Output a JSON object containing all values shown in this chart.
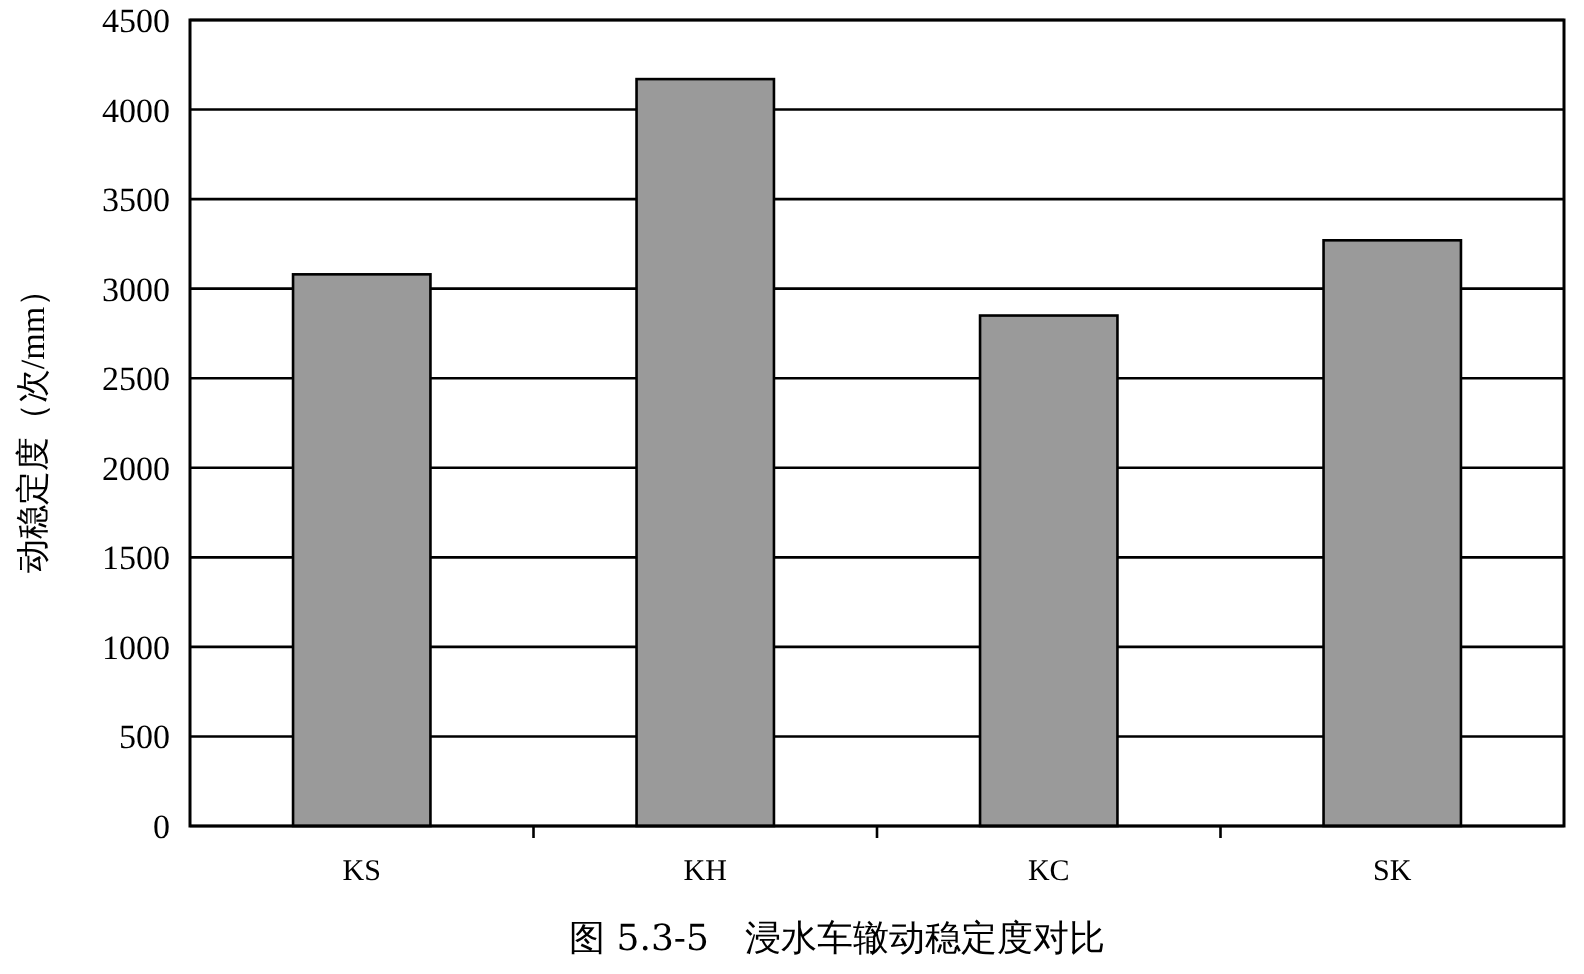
{
  "chart_data": {
    "type": "bar",
    "title": "图 5.3-5　浸水车辙动稳定度对比",
    "ylabel": "动稳定度（次/mm）",
    "categories": [
      "KS",
      "KH",
      "KC",
      "SK"
    ],
    "values": [
      3080,
      4170,
      2850,
      3270
    ],
    "color": "#9a9a9a",
    "ylim": [
      0,
      4500
    ],
    "yticks": [
      0,
      500,
      1000,
      1500,
      2000,
      2500,
      3000,
      3500,
      4000,
      4500
    ],
    "grid": "y"
  }
}
